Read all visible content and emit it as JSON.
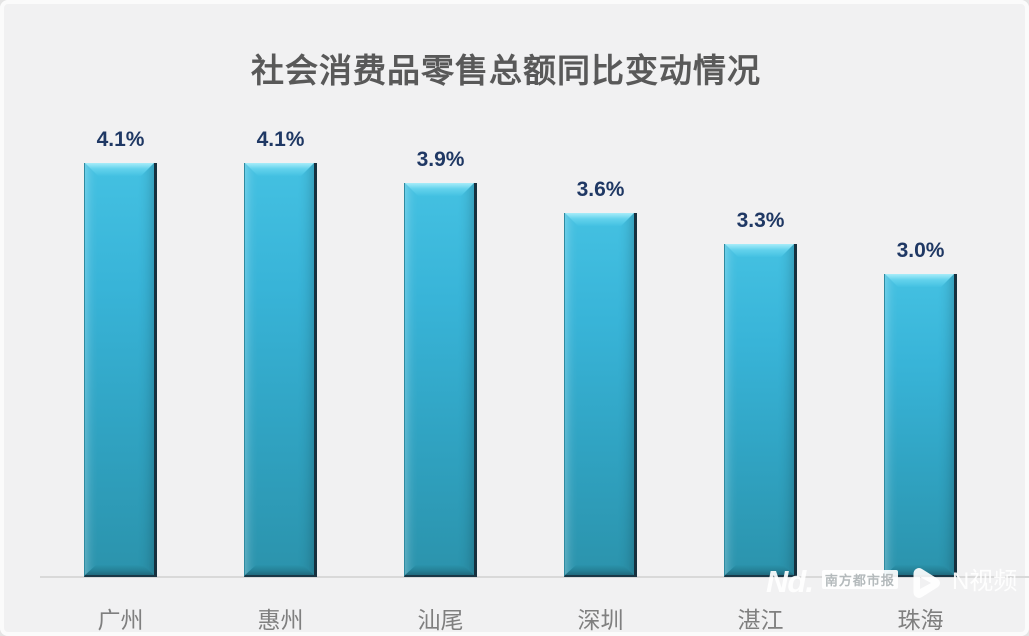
{
  "chart_data": {
    "type": "bar",
    "title": "社会消费品零售总额同比变动情况",
    "categories": [
      "广州",
      "惠州",
      "汕尾",
      "深圳",
      "湛江",
      "珠海"
    ],
    "values": [
      4.1,
      4.1,
      3.9,
      3.6,
      3.3,
      3.0
    ],
    "value_labels": [
      "4.1%",
      "4.1%",
      "3.9%",
      "3.6%",
      "3.3%",
      "3.0%"
    ],
    "unit": "%",
    "xlabel": "",
    "ylabel": "",
    "ylim": [
      0,
      4.6
    ],
    "grid": false,
    "legend": false,
    "layout_hints": {
      "orientation": "vertical",
      "data_labels": "above-bars",
      "axis_line": "bottom-only"
    },
    "colors": {
      "background": "#f1f1f2",
      "bar_top": "#44c1e2",
      "bar_bottom": "#2b93ac",
      "bar_bevel_highlight": "#a8edf9",
      "bar_edge_dark": "#17303e",
      "title": "#595959",
      "value_label": "#1f3864",
      "category_label": "#7f7f7f",
      "axis_line": "#d9d9d9"
    }
  },
  "watermark": {
    "brand_script": "Nd.",
    "badge_text": "南方都市报",
    "video_brand": "N视频",
    "play_icon": "play-icon"
  }
}
